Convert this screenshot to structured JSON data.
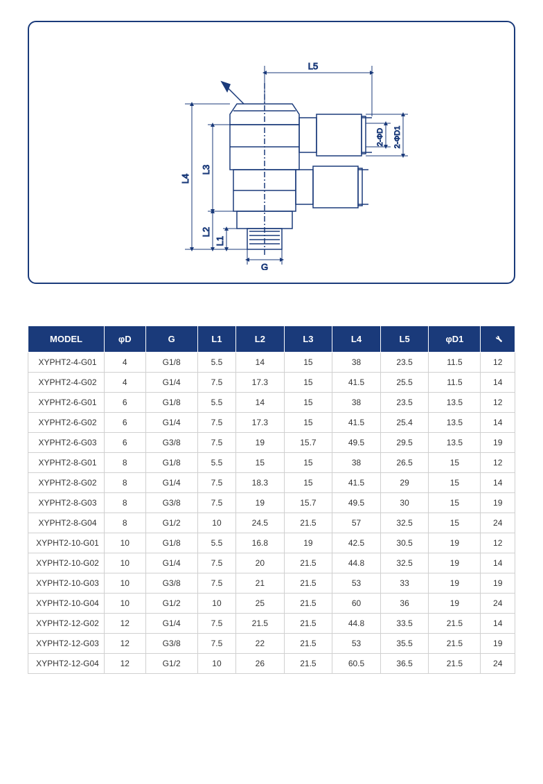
{
  "diagram": {
    "stroke_color": "#1a3a7a",
    "stroke_width": 1.5,
    "labels": {
      "L1": "L1",
      "L2": "L2",
      "L3": "L3",
      "L4": "L4",
      "L5": "L5",
      "G": "G",
      "phiD": "2-ΦD",
      "phiD1": "2-ΦD1"
    },
    "frame_border_color": "#1a3a7a",
    "frame_border_radius": 12
  },
  "table": {
    "header_bg": "#1a3a7a",
    "header_fg": "#ffffff",
    "border_color": "#d0d0d0",
    "cell_fg": "#333333",
    "font_size": 12,
    "columns": [
      "MODEL",
      "φD",
      "G",
      "L1",
      "L2",
      "L3",
      "L4",
      "L5",
      "φD1",
      "wrench"
    ],
    "column_labels": {
      "MODEL": "MODEL",
      "phiD": "φD",
      "G": "G",
      "L1": "L1",
      "L2": "L2",
      "L3": "L3",
      "L4": "L4",
      "L5": "L5",
      "phiD1": "φD1"
    },
    "rows": [
      {
        "model": "XYPHT2-4-G01",
        "phiD": "4",
        "G": "G1/8",
        "L1": "5.5",
        "L2": "14",
        "L3": "15",
        "L4": "38",
        "L5": "23.5",
        "phiD1": "11.5",
        "wrench": "12"
      },
      {
        "model": "XYPHT2-4-G02",
        "phiD": "4",
        "G": "G1/4",
        "L1": "7.5",
        "L2": "17.3",
        "L3": "15",
        "L4": "41.5",
        "L5": "25.5",
        "phiD1": "11.5",
        "wrench": "14"
      },
      {
        "model": "XYPHT2-6-G01",
        "phiD": "6",
        "G": "G1/8",
        "L1": "5.5",
        "L2": "14",
        "L3": "15",
        "L4": "38",
        "L5": "23.5",
        "phiD1": "13.5",
        "wrench": "12"
      },
      {
        "model": "XYPHT2-6-G02",
        "phiD": "6",
        "G": "G1/4",
        "L1": "7.5",
        "L2": "17.3",
        "L3": "15",
        "L4": "41.5",
        "L5": "25.4",
        "phiD1": "13.5",
        "wrench": "14"
      },
      {
        "model": "XYPHT2-6-G03",
        "phiD": "6",
        "G": "G3/8",
        "L1": "7.5",
        "L2": "19",
        "L3": "15.7",
        "L4": "49.5",
        "L5": "29.5",
        "phiD1": "13.5",
        "wrench": "19"
      },
      {
        "model": "XYPHT2-8-G01",
        "phiD": "8",
        "G": "G1/8",
        "L1": "5.5",
        "L2": "15",
        "L3": "15",
        "L4": "38",
        "L5": "26.5",
        "phiD1": "15",
        "wrench": "12"
      },
      {
        "model": "XYPHT2-8-G02",
        "phiD": "8",
        "G": "G1/4",
        "L1": "7.5",
        "L2": "18.3",
        "L3": "15",
        "L4": "41.5",
        "L5": "29",
        "phiD1": "15",
        "wrench": "14"
      },
      {
        "model": "XYPHT2-8-G03",
        "phiD": "8",
        "G": "G3/8",
        "L1": "7.5",
        "L2": "19",
        "L3": "15.7",
        "L4": "49.5",
        "L5": "30",
        "phiD1": "15",
        "wrench": "19"
      },
      {
        "model": "XYPHT2-8-G04",
        "phiD": "8",
        "G": "G1/2",
        "L1": "10",
        "L2": "24.5",
        "L3": "21.5",
        "L4": "57",
        "L5": "32.5",
        "phiD1": "15",
        "wrench": "24"
      },
      {
        "model": "XYPHT2-10-G01",
        "phiD": "10",
        "G": "G1/8",
        "L1": "5.5",
        "L2": "16.8",
        "L3": "19",
        "L4": "42.5",
        "L5": "30.5",
        "phiD1": "19",
        "wrench": "12"
      },
      {
        "model": "XYPHT2-10-G02",
        "phiD": "10",
        "G": "G1/4",
        "L1": "7.5",
        "L2": "20",
        "L3": "21.5",
        "L4": "44.8",
        "L5": "32.5",
        "phiD1": "19",
        "wrench": "14"
      },
      {
        "model": "XYPHT2-10-G03",
        "phiD": "10",
        "G": "G3/8",
        "L1": "7.5",
        "L2": "21",
        "L3": "21.5",
        "L4": "53",
        "L5": "33",
        "phiD1": "19",
        "wrench": "19"
      },
      {
        "model": "XYPHT2-10-G04",
        "phiD": "10",
        "G": "G1/2",
        "L1": "10",
        "L2": "25",
        "L3": "21.5",
        "L4": "60",
        "L5": "36",
        "phiD1": "19",
        "wrench": "24"
      },
      {
        "model": "XYPHT2-12-G02",
        "phiD": "12",
        "G": "G1/4",
        "L1": "7.5",
        "L2": "21.5",
        "L3": "21.5",
        "L4": "44.8",
        "L5": "33.5",
        "phiD1": "21.5",
        "wrench": "14"
      },
      {
        "model": "XYPHT2-12-G03",
        "phiD": "12",
        "G": "G3/8",
        "L1": "7.5",
        "L2": "22",
        "L3": "21.5",
        "L4": "53",
        "L5": "35.5",
        "phiD1": "21.5",
        "wrench": "19"
      },
      {
        "model": "XYPHT2-12-G04",
        "phiD": "12",
        "G": "G1/2",
        "L1": "10",
        "L2": "26",
        "L3": "21.5",
        "L4": "60.5",
        "L5": "36.5",
        "phiD1": "21.5",
        "wrench": "24"
      }
    ]
  }
}
